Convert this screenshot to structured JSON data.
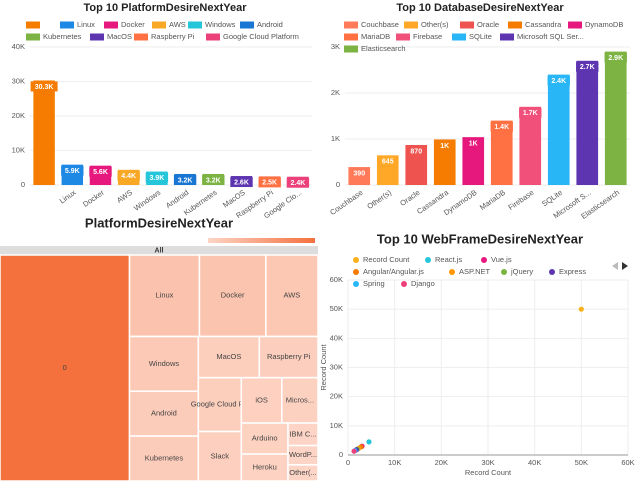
{
  "chart_data": [
    {
      "type": "bar",
      "title": "Top 10 PlatformDesireNextYear",
      "categories": [
        null,
        "Linux",
        "Docker",
        "AWS",
        "Windows",
        "Android",
        "Kubernetes",
        "MacOS",
        "Raspberry Pi",
        "Google Cloud Platform"
      ],
      "tick_labels": [
        null,
        "Linux",
        "Docker",
        "AWS",
        "Windows",
        "Android",
        "Kubernetes",
        "MacOS",
        "Raspberry Pi",
        "Google Clo..."
      ],
      "values": [
        30300,
        5900,
        5600,
        4400,
        3900,
        3200,
        3200,
        2600,
        2500,
        2400
      ],
      "value_labels": [
        "30.3K",
        "5.9K",
        "5.6K",
        "4.4K",
        "3.9K",
        "3.2K",
        "3.2K",
        "2.6K",
        "2.5K",
        "2.4K"
      ],
      "colors": [
        "#f57c00",
        "#1e88e5",
        "#e6187e",
        "#f9a825",
        "#26c6da",
        "#1976d2",
        "#7cb342",
        "#5e35b1",
        "#ff7043",
        "#ec407a"
      ],
      "ylim": [
        0,
        40000
      ],
      "yticks": [
        0,
        {
          "value": 10000,
          "label": "10K"
        },
        {
          "value": 20000,
          "label": "20K"
        },
        {
          "value": 30000,
          "label": "30K"
        },
        {
          "value": 40000,
          "label": "40K"
        }
      ],
      "grid": true
    },
    {
      "type": "bar",
      "title": "Top 10 DatabaseDesireNextYear",
      "categories": [
        "Couchbase",
        "Other(s)",
        "Oracle",
        "Cassandra",
        "DynamoDB",
        "MariaDB",
        "Firebase",
        "SQLite",
        "Microsoft SQL Ser...",
        "Elasticsearch"
      ],
      "tick_labels": [
        "Couchbase",
        "Other(s)",
        "Oracle",
        "Cassandra",
        "DynamoDB",
        "MariaDB",
        "Firebase",
        "SQLite",
        "Microsoft S...",
        "Elasticsearch"
      ],
      "values": [
        390,
        645,
        870,
        990,
        1040,
        1400,
        1700,
        2400,
        2700,
        2900
      ],
      "value_labels": [
        "390",
        "645",
        "870",
        "1K",
        "1K",
        "1.4K",
        "1.7K",
        "2.4K",
        "2.7K",
        "2.9K"
      ],
      "colors": [
        "#ff7a59",
        "#ffa726",
        "#ef5350",
        "#f57c00",
        "#e6187e",
        "#ff7043",
        "#f0507a",
        "#29b6f6",
        "#5e35b1",
        "#7cb342"
      ],
      "ylim": [
        0,
        3000
      ],
      "yticks": [
        0,
        {
          "value": 1000,
          "label": "1K"
        },
        {
          "value": 2000,
          "label": "2K"
        },
        {
          "value": 3000,
          "label": "3K"
        }
      ],
      "grid": true
    },
    {
      "type": "treemap",
      "title": "PlatformDesireNextYear",
      "root": "All",
      "color_min": "#fdd5c6",
      "color_max": "#f4703d",
      "nodes": [
        {
          "label": "0",
          "value": 30300
        },
        {
          "label": "Linux",
          "value": 5900
        },
        {
          "label": "Docker",
          "value": 5600
        },
        {
          "label": "AWS",
          "value": 4400
        },
        {
          "label": "Windows",
          "value": 3900
        },
        {
          "label": "Android",
          "value": 3200
        },
        {
          "label": "Kubernetes",
          "value": 3200
        },
        {
          "label": "MacOS",
          "value": 2600
        },
        {
          "label": "Raspberry Pi",
          "value": 2500
        },
        {
          "label": "Google Cloud P...",
          "value": 2400
        },
        {
          "label": "Slack",
          "value": 2200
        },
        {
          "label": "iOS",
          "value": 1900
        },
        {
          "label": "Micros...",
          "value": 1700
        },
        {
          "label": "Arduino",
          "value": 1500
        },
        {
          "label": "Heroku",
          "value": 1300
        },
        {
          "label": "IBM C...",
          "value": 700
        },
        {
          "label": "WordP...",
          "value": 600
        },
        {
          "label": "Other(...",
          "value": 500
        }
      ]
    },
    {
      "type": "scatter",
      "title": "Top 10 WebFrameDesireNextYear",
      "xlabel": "Record Count",
      "ylabel": "Record Count",
      "series": [
        {
          "name": "Record Count",
          "color": "#f9b21d",
          "x": [
            50000
          ],
          "values": [
            50000
          ]
        },
        {
          "name": "React.js",
          "color": "#26c6da",
          "x": [
            4500
          ],
          "values": [
            4500
          ]
        },
        {
          "name": "Vue.js",
          "color": "#e6187e",
          "x": [
            3000
          ],
          "values": [
            3000
          ]
        },
        {
          "name": "Angular/Angular.js",
          "color": "#f57c00",
          "x": [
            2800
          ],
          "values": [
            2800
          ]
        },
        {
          "name": "ASP.NET",
          "color": "#ff9800",
          "x": [
            2300
          ],
          "values": [
            2300
          ]
        },
        {
          "name": "jQuery",
          "color": "#7cb342",
          "x": [
            2000
          ],
          "values": [
            2000
          ]
        },
        {
          "name": "Express",
          "color": "#5e35b1",
          "x": [
            1800
          ],
          "values": [
            1800
          ]
        },
        {
          "name": "Spring",
          "color": "#29b6f6",
          "x": [
            1500
          ],
          "values": [
            1500
          ]
        },
        {
          "name": "Django",
          "color": "#ec407a",
          "x": [
            1300
          ],
          "values": [
            1300
          ]
        }
      ],
      "xlim": [
        0,
        60000
      ],
      "xticks": [
        0,
        {
          "value": 10000,
          "label": "10K"
        },
        {
          "value": 20000,
          "label": "20K"
        },
        {
          "value": 30000,
          "label": "30K"
        },
        {
          "value": 40000,
          "label": "40K"
        },
        {
          "value": 50000,
          "label": "50K"
        },
        {
          "value": 60000,
          "label": "60K"
        }
      ],
      "ylim": [
        0,
        60000
      ],
      "yticks": [
        0,
        {
          "value": 10000,
          "label": "10K"
        },
        {
          "value": 20000,
          "label": "20K"
        },
        {
          "value": 30000,
          "label": "30K"
        },
        {
          "value": 40000,
          "label": "40K"
        },
        {
          "value": 50000,
          "label": "50K"
        },
        {
          "value": 60000,
          "label": "60K"
        }
      ],
      "grid": true
    }
  ]
}
